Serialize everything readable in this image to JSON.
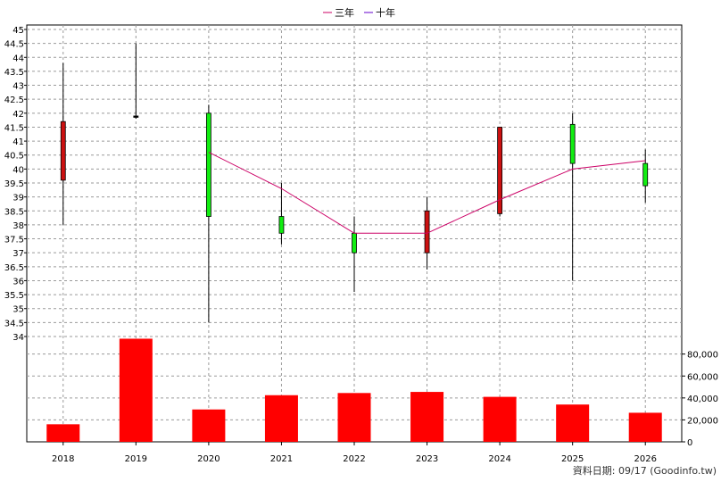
{
  "chart_data": {
    "type": "candlestick",
    "legend": [
      {
        "label": "三年",
        "color": "#cc0066"
      },
      {
        "label": "十年",
        "color": "#6600cc"
      }
    ],
    "source_note": "資料日期: 09/17  (Goodinfo.tw)",
    "categories": [
      "2018",
      "2019",
      "2020",
      "2021",
      "2022",
      "2023",
      "2024",
      "2025",
      "2026"
    ],
    "price_axis": {
      "min": 34,
      "max": 45,
      "step": 0.5,
      "tick_labels": [
        "34",
        "34.5",
        "35",
        "35.5",
        "36",
        "36.5",
        "37",
        "37.5",
        "38",
        "38.5",
        "39",
        "39.5",
        "40",
        "40.5",
        "41",
        "41.5",
        "42",
        "42.5",
        "43",
        "43.5",
        "44",
        "44.5",
        "45"
      ]
    },
    "volume_axis": {
      "min": 0,
      "max": 96000,
      "tick_values": [
        0,
        20000,
        40000,
        60000,
        80000
      ],
      "tick_labels": [
        "0",
        "20,000",
        "40,000",
        "60,000",
        "80,000"
      ]
    },
    "candles": [
      {
        "year": "2018",
        "open": 39.6,
        "close": 41.7,
        "high": 43.8,
        "low": 38.0
      },
      {
        "year": "2019",
        "open": 41.9,
        "close": 41.9,
        "high": 44.5,
        "low": 41.8
      },
      {
        "year": "2020",
        "open": 42.0,
        "close": 38.3,
        "high": 42.3,
        "low": 34.5
      },
      {
        "year": "2021",
        "open": 38.3,
        "close": 37.7,
        "high": 39.5,
        "low": 37.3
      },
      {
        "year": "2022",
        "open": 37.7,
        "close": 37.0,
        "high": 38.3,
        "low": 35.6
      },
      {
        "year": "2023",
        "open": 37.0,
        "close": 38.5,
        "high": 39.0,
        "low": 36.4
      },
      {
        "year": "2024",
        "open": 38.4,
        "close": 41.5,
        "high": 41.5,
        "low": 38.3
      },
      {
        "year": "2025",
        "open": 41.6,
        "close": 40.2,
        "high": 42.0,
        "low": 36.0
      },
      {
        "year": "2026",
        "open": 40.2,
        "close": 39.4,
        "high": 40.7,
        "low": 38.8
      }
    ],
    "three_year_avg": [
      {
        "year": "2020",
        "value": 40.6
      },
      {
        "year": "2021",
        "value": 39.3
      },
      {
        "year": "2022",
        "value": 37.7
      },
      {
        "year": "2023",
        "value": 37.7
      },
      {
        "year": "2024",
        "value": 38.9
      },
      {
        "year": "2025",
        "value": 40.0
      },
      {
        "year": "2026",
        "value": 40.3
      }
    ],
    "ten_year_avg": [],
    "volume": [
      {
        "year": "2018",
        "value": 16000
      },
      {
        "year": "2019",
        "value": 94000
      },
      {
        "year": "2020",
        "value": 29500
      },
      {
        "year": "2021",
        "value": 42500
      },
      {
        "year": "2022",
        "value": 44500
      },
      {
        "year": "2023",
        "value": 45500
      },
      {
        "year": "2024",
        "value": 41000
      },
      {
        "year": "2025",
        "value": 34000
      },
      {
        "year": "2026",
        "value": 26500
      }
    ],
    "colors": {
      "up": "#cc1111",
      "down": "#11ee11",
      "volume": "#ff0000",
      "wick": "#000000"
    },
    "grid": true
  }
}
